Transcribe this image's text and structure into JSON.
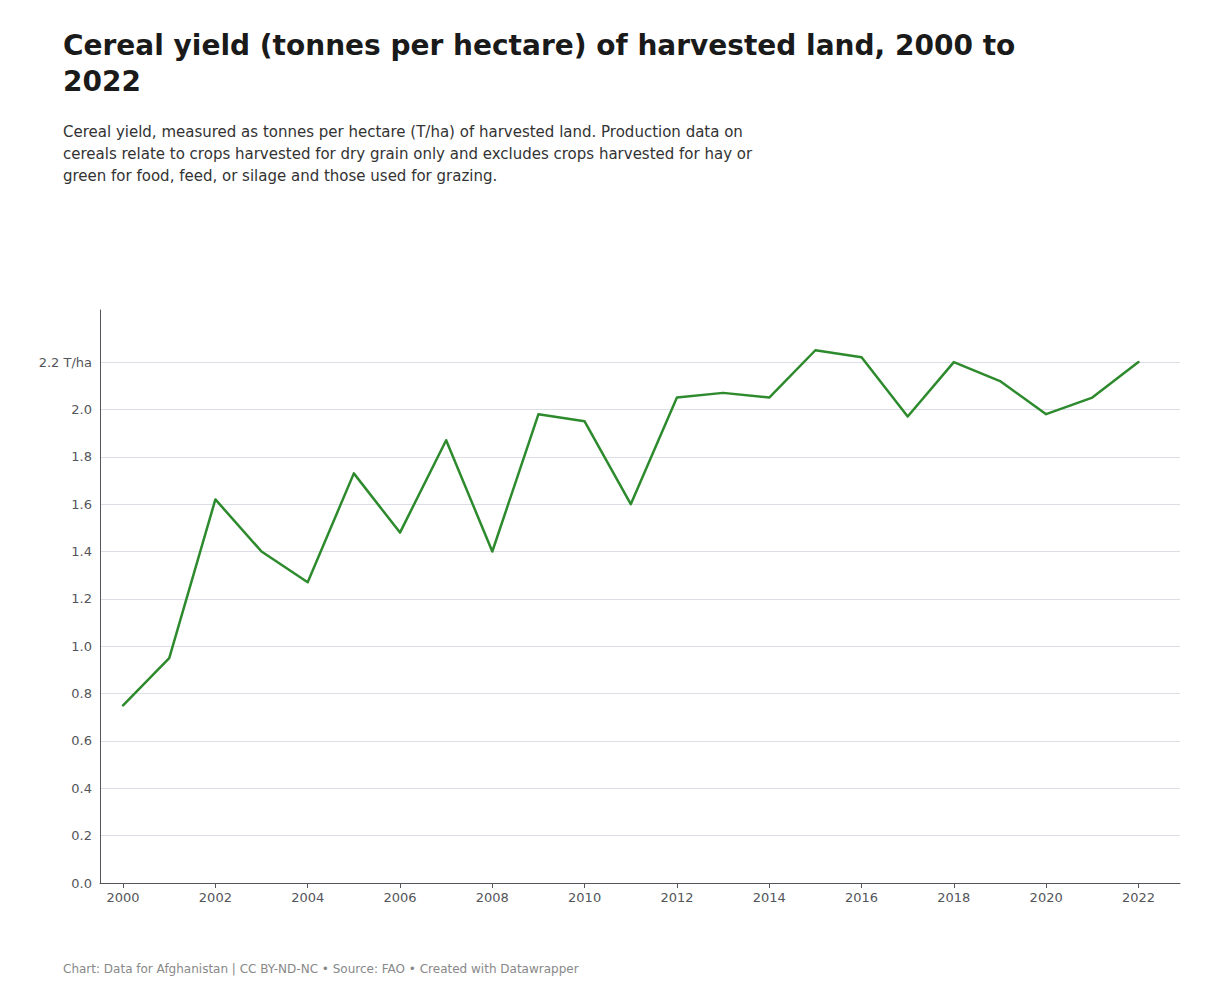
{
  "chart_data": {
    "type": "line",
    "title": "Cereal yield (tonnes per hectare) of harvested land, 2000 to\n2022",
    "subtitle": "Cereal yield, measured as tonnes per hectare (T/ha) of harvested land. Production data on\ncereals relate to crops harvested for dry grain only and excludes crops harvested for hay or\ngreen for food, feed, or silage and those used for grazing.",
    "annotations": [
      "Chart: Data for Afghanistan | CC BY-ND-NC • Source: FAO • Created with Datawrapper"
    ],
    "x": [
      2000,
      2001,
      2002,
      2003,
      2004,
      2005,
      2006,
      2007,
      2008,
      2009,
      2010,
      2011,
      2012,
      2013,
      2014,
      2015,
      2016,
      2017,
      2018,
      2019,
      2020,
      2021,
      2022
    ],
    "values": [
      0.75,
      0.95,
      1.62,
      1.4,
      1.27,
      1.73,
      1.48,
      1.87,
      1.4,
      1.98,
      1.95,
      1.6,
      2.05,
      2.07,
      2.05,
      2.25,
      2.22,
      1.97,
      2.2,
      2.12,
      1.98,
      2.05,
      2.2
    ],
    "color": "#2d8a2d",
    "xlim": [
      1999.5,
      2022.9
    ],
    "xticks": [
      2000,
      2002,
      2004,
      2006,
      2008,
      2010,
      2012,
      2014,
      2016,
      2018,
      2020,
      2022
    ],
    "ylim": [
      0.0,
      2.42
    ],
    "yticks": [
      {
        "value": 0.0,
        "label": "0.0"
      },
      0.2,
      0.4,
      0.6,
      0.8,
      {
        "value": 1.0,
        "label": "1.0"
      },
      1.2,
      1.4,
      1.6,
      1.8,
      {
        "value": 2.0,
        "label": "2.0"
      },
      {
        "value": 2.2,
        "label": "2.2 T/ha"
      }
    ],
    "grid": true
  }
}
